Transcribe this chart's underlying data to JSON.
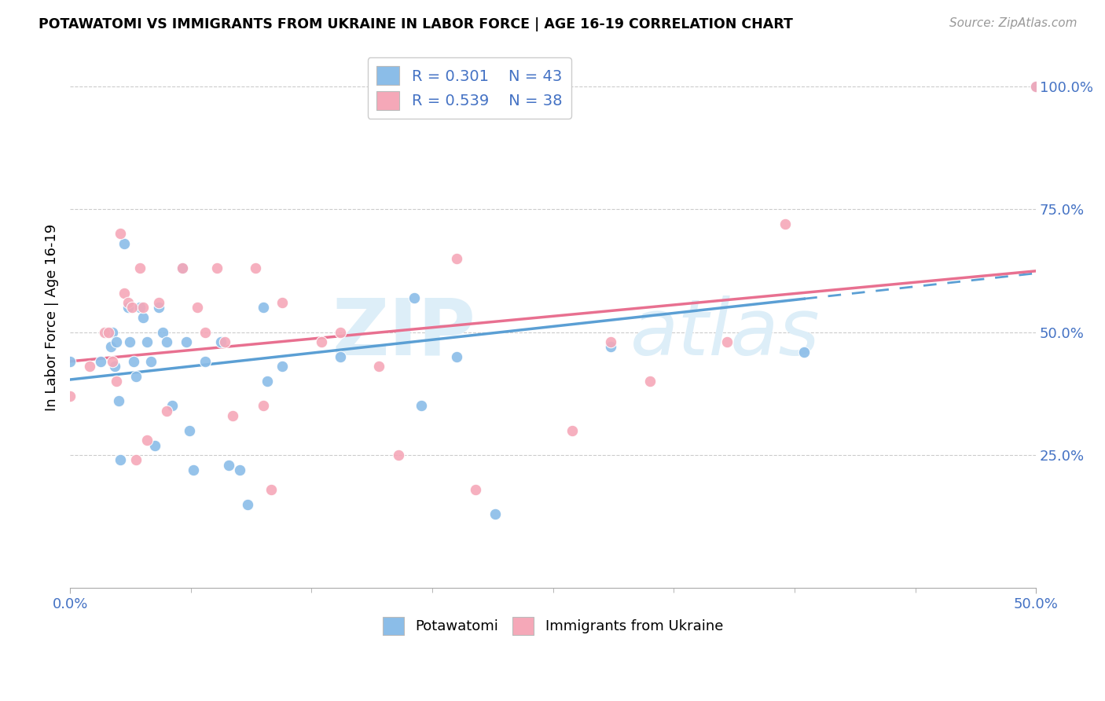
{
  "title": "POTAWATOMI VS IMMIGRANTS FROM UKRAINE IN LABOR FORCE | AGE 16-19 CORRELATION CHART",
  "source": "Source: ZipAtlas.com",
  "ylabel": "In Labor Force | Age 16-19",
  "xlim": [
    0.0,
    0.5
  ],
  "ylim": [
    -0.02,
    1.08
  ],
  "ytick_vals": [
    0.25,
    0.5,
    0.75,
    1.0
  ],
  "xtick_vals": [
    0.0,
    0.5
  ],
  "blue_color": "#8BBDE8",
  "pink_color": "#F5A8B8",
  "trend_blue": "#5B9FD4",
  "trend_pink": "#E87090",
  "potawatomi_x": [
    0.0,
    0.016,
    0.019,
    0.021,
    0.022,
    0.023,
    0.024,
    0.025,
    0.026,
    0.028,
    0.03,
    0.031,
    0.033,
    0.034,
    0.036,
    0.038,
    0.04,
    0.042,
    0.044,
    0.046,
    0.048,
    0.05,
    0.053,
    0.058,
    0.06,
    0.062,
    0.064,
    0.07,
    0.078,
    0.082,
    0.088,
    0.092,
    0.1,
    0.102,
    0.11,
    0.14,
    0.178,
    0.182,
    0.2,
    0.22,
    0.28,
    0.38,
    0.5
  ],
  "potawatomi_y": [
    0.44,
    0.44,
    0.5,
    0.47,
    0.5,
    0.43,
    0.48,
    0.36,
    0.24,
    0.68,
    0.55,
    0.48,
    0.44,
    0.41,
    0.55,
    0.53,
    0.48,
    0.44,
    0.27,
    0.55,
    0.5,
    0.48,
    0.35,
    0.63,
    0.48,
    0.3,
    0.22,
    0.44,
    0.48,
    0.23,
    0.22,
    0.15,
    0.55,
    0.4,
    0.43,
    0.45,
    0.57,
    0.35,
    0.45,
    0.13,
    0.47,
    0.46,
    1.0
  ],
  "ukraine_x": [
    0.0,
    0.01,
    0.018,
    0.02,
    0.022,
    0.024,
    0.026,
    0.028,
    0.03,
    0.032,
    0.034,
    0.036,
    0.038,
    0.04,
    0.046,
    0.05,
    0.058,
    0.066,
    0.07,
    0.076,
    0.08,
    0.084,
    0.096,
    0.1,
    0.104,
    0.11,
    0.13,
    0.14,
    0.16,
    0.17,
    0.2,
    0.21,
    0.26,
    0.28,
    0.3,
    0.34,
    0.37,
    0.5
  ],
  "ukraine_y": [
    0.37,
    0.43,
    0.5,
    0.5,
    0.44,
    0.4,
    0.7,
    0.58,
    0.56,
    0.55,
    0.24,
    0.63,
    0.55,
    0.28,
    0.56,
    0.34,
    0.63,
    0.55,
    0.5,
    0.63,
    0.48,
    0.33,
    0.63,
    0.35,
    0.18,
    0.56,
    0.48,
    0.5,
    0.43,
    0.25,
    0.65,
    0.18,
    0.3,
    0.48,
    0.4,
    0.48,
    0.72,
    1.0
  ]
}
